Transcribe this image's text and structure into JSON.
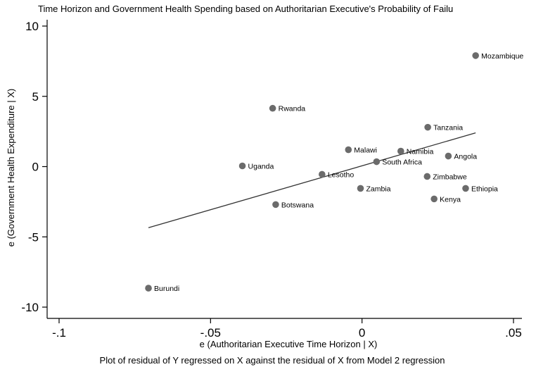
{
  "chart_data": {
    "type": "scatter",
    "title": "Time Horizon and Government Health Spending based on Authoritarian Executive's Probability of Failu",
    "xlabel": "e (Authoritarian Executive Time Horizon | X)",
    "ylabel": "e (Government Health Expenditure | X)",
    "note": "Plot of residual of Y regressed on X against the residual of X from Model 2 regression",
    "xlim": [
      -0.1,
      0.05
    ],
    "ylim": [
      -10,
      10
    ],
    "x_ticks": [
      {
        "value": -0.1,
        "label": "-.1"
      },
      {
        "value": -0.05,
        "label": "-.05"
      },
      {
        "value": 0,
        "label": "0"
      },
      {
        "value": 0.05,
        "label": ".05"
      }
    ],
    "y_ticks": [
      {
        "value": 10,
        "label": "10"
      },
      {
        "value": 5,
        "label": "5"
      },
      {
        "value": 0,
        "label": "0"
      },
      {
        "value": -5,
        "label": "-5"
      },
      {
        "value": -10,
        "label": "-10"
      }
    ],
    "grid": false,
    "points": [
      {
        "label": "Mozambique",
        "x": 0.0375,
        "y": 7.9
      },
      {
        "label": "Rwanda",
        "x": -0.0295,
        "y": 4.15
      },
      {
        "label": "Tanzania",
        "x": 0.0217,
        "y": 2.8
      },
      {
        "label": "Malawi",
        "x": -0.0045,
        "y": 1.2
      },
      {
        "label": "Namibia",
        "x": 0.0128,
        "y": 1.1
      },
      {
        "label": "Angola",
        "x": 0.0285,
        "y": 0.75
      },
      {
        "label": "South Africa",
        "x": 0.0048,
        "y": 0.35
      },
      {
        "label": "Uganda",
        "x": -0.0395,
        "y": 0.05
      },
      {
        "label": "Lesotho",
        "x": -0.0132,
        "y": -0.55
      },
      {
        "label": "Zimbabwe",
        "x": 0.0215,
        "y": -0.7
      },
      {
        "label": "Zambia",
        "x": -0.0005,
        "y": -1.55
      },
      {
        "label": "Ethiopia",
        "x": 0.0342,
        "y": -1.55
      },
      {
        "label": "Kenya",
        "x": 0.0238,
        "y": -2.3
      },
      {
        "label": "Botswana",
        "x": -0.0285,
        "y": -2.7
      },
      {
        "label": "Burundi",
        "x": -0.0705,
        "y": -8.65
      }
    ],
    "fit_line": {
      "x": [
        -0.0705,
        0.0375
      ],
      "y": [
        -4.35,
        2.4
      ]
    },
    "colors": {
      "point": "#6b6b6b",
      "line": "#333333",
      "axis": "#000000"
    }
  }
}
